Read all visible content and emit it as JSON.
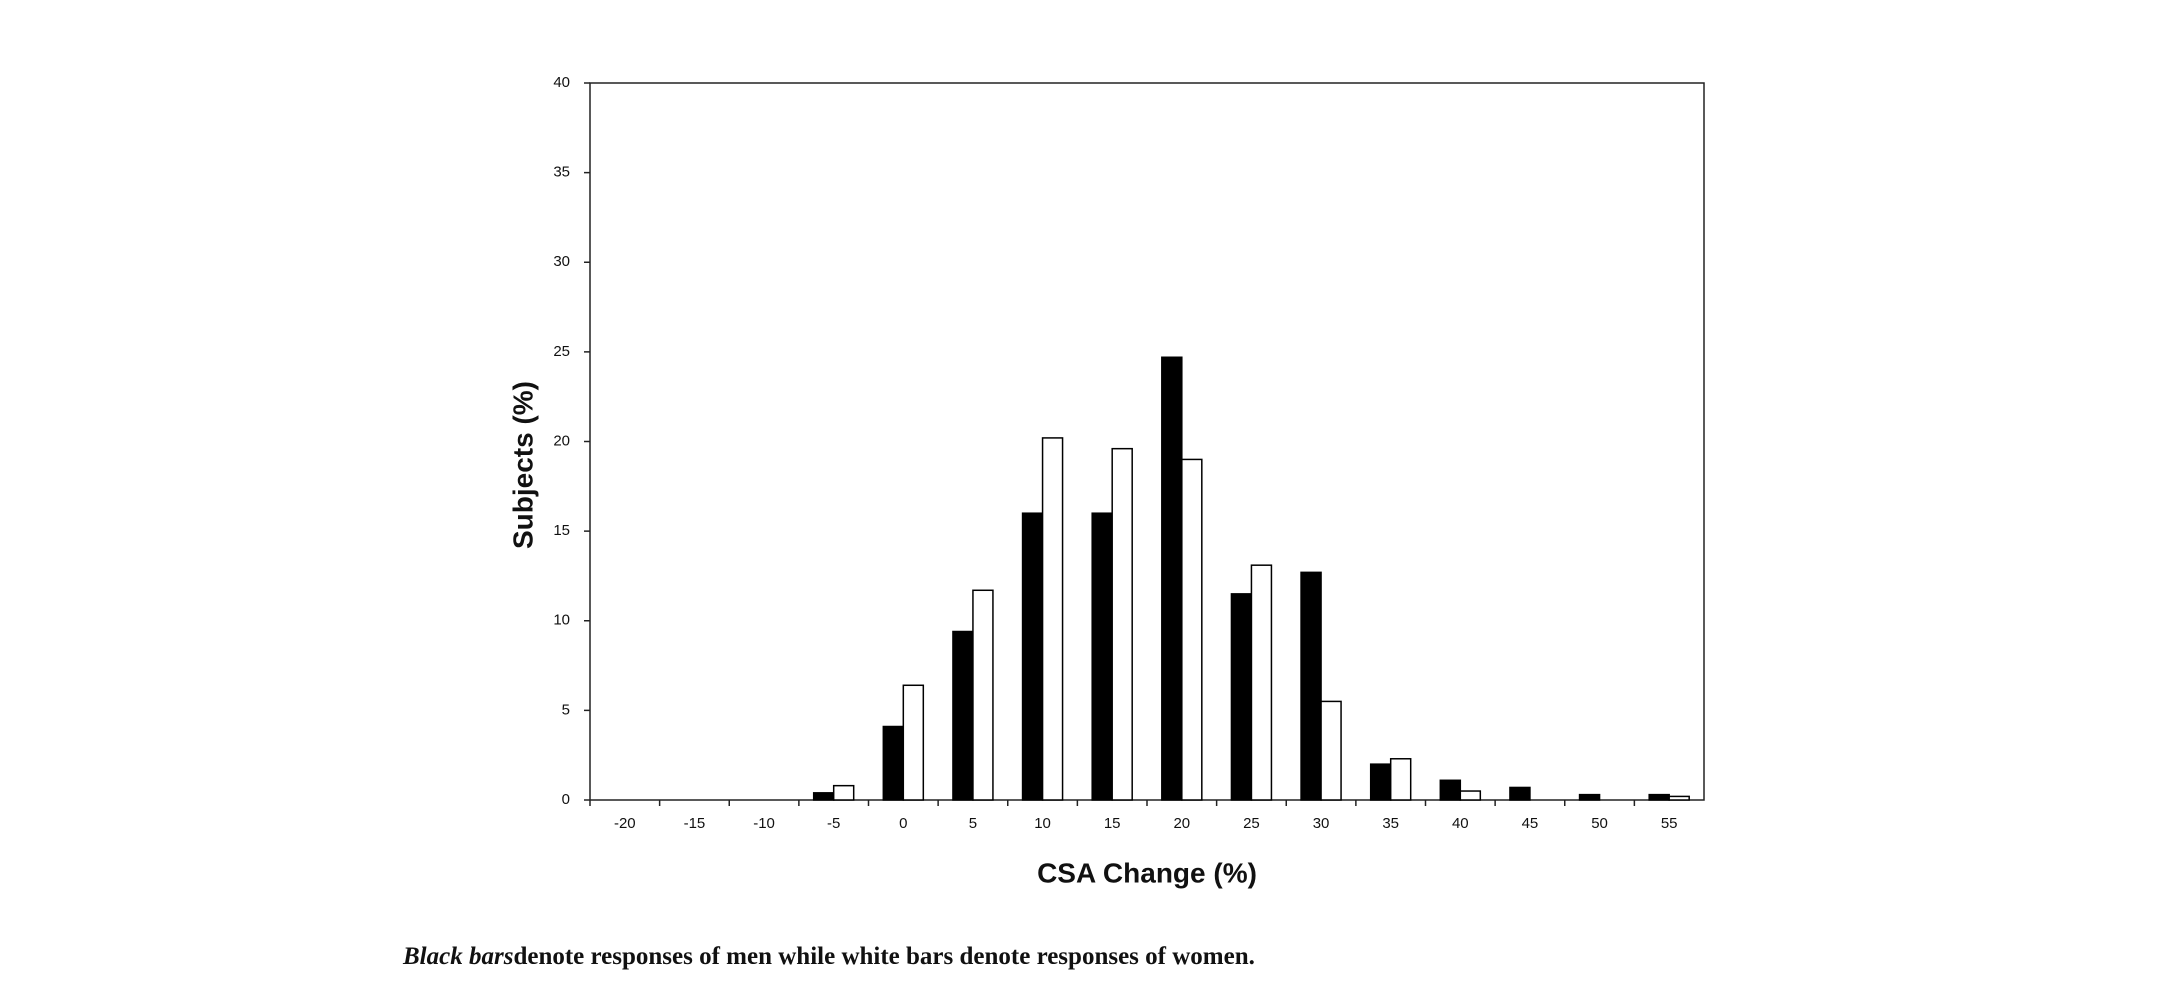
{
  "chart_data": {
    "type": "bar",
    "xlabel": "CSA Change (%)",
    "ylabel": "Subjects (%)",
    "categories": [
      -20,
      -15,
      -10,
      -5,
      0,
      5,
      10,
      15,
      20,
      25,
      30,
      35,
      40,
      45,
      50,
      55
    ],
    "series": [
      {
        "color": "#000000",
        "values": [
          0,
          0,
          0,
          0.4,
          4.1,
          9.4,
          16,
          16,
          24.7,
          11.5,
          12.7,
          2,
          1.1,
          0.7,
          0.3,
          0.3
        ]
      },
      {
        "color": "#ffffff",
        "values": [
          0,
          0,
          0,
          0.8,
          6.4,
          11.7,
          20.2,
          19.6,
          19,
          13.1,
          5.5,
          2.3,
          0.5,
          0,
          0,
          0.2
        ]
      }
    ],
    "ylim": [
      0,
      40
    ],
    "yticks": [
      0,
      5,
      10,
      15,
      20,
      25,
      30,
      35,
      40
    ],
    "grid": false
  },
  "caption": {
    "emphasis": "Black bars",
    "text": "denote responses of men while white bars denote responses of women."
  }
}
